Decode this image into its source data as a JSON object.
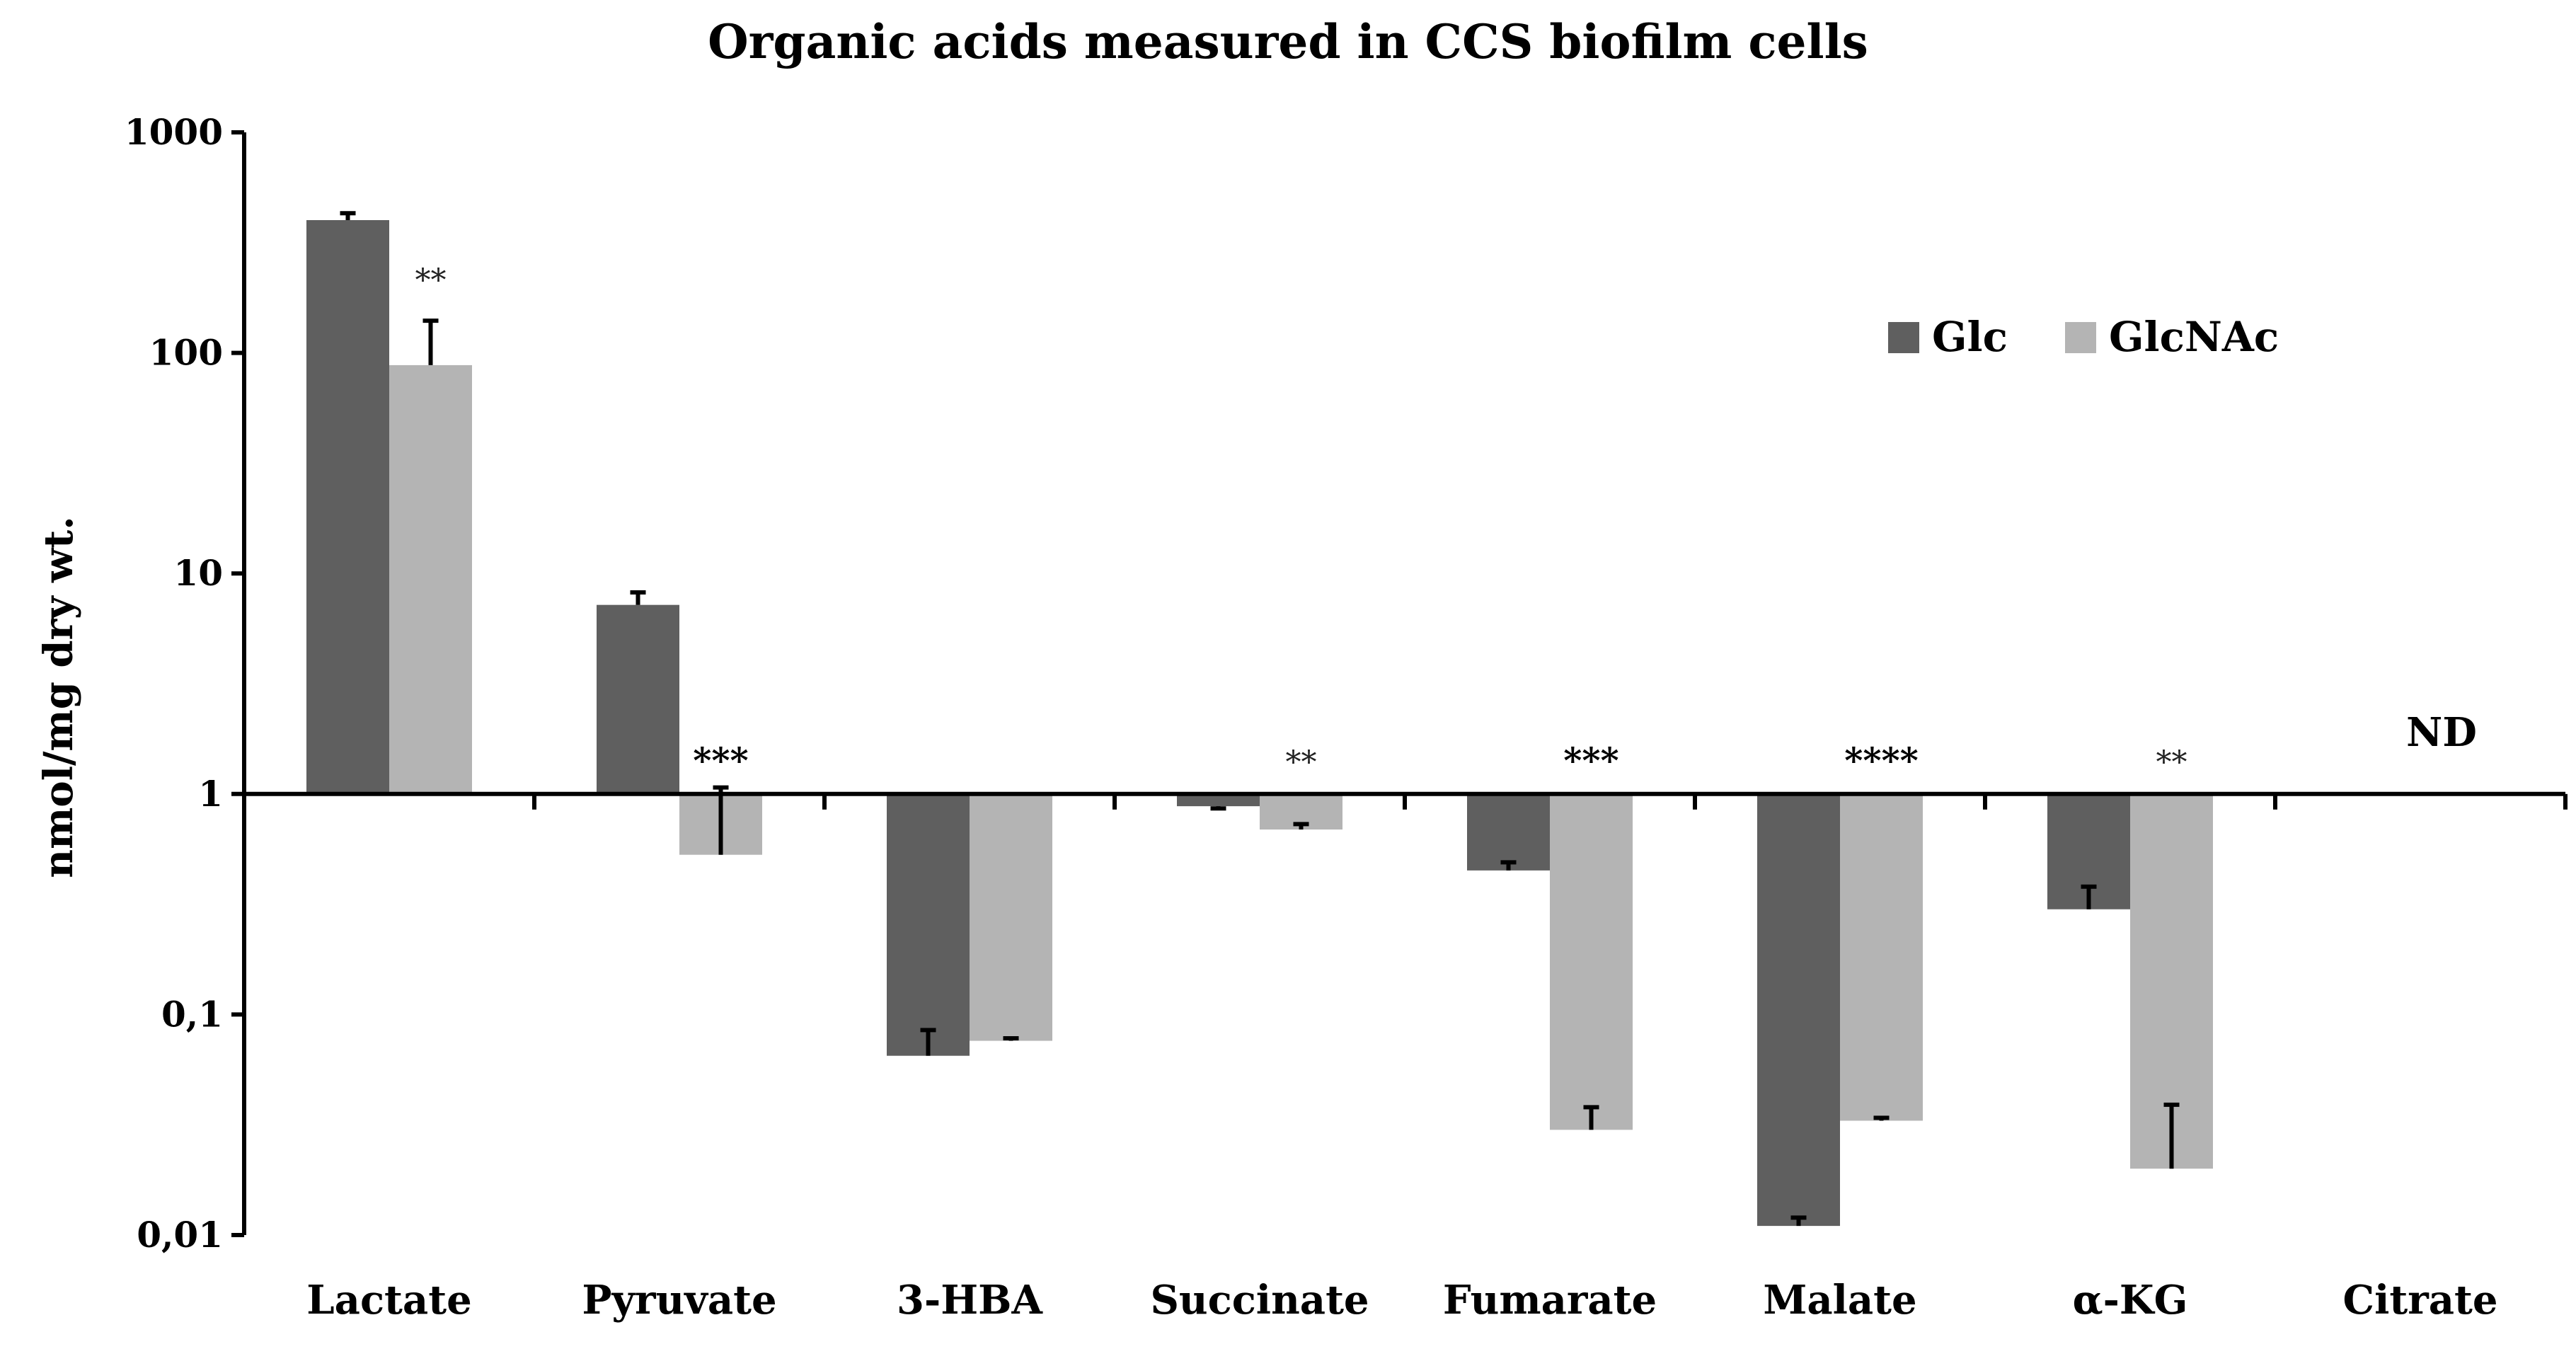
{
  "chart_data": {
    "type": "bar",
    "title": "Organic acids measured in CCS biofilm cells",
    "xlabel": "",
    "ylabel": "nmol/mg dry wt.",
    "yscale": "log",
    "ylim": [
      0.01,
      1000
    ],
    "baseline": 1,
    "y_ticks": [
      0.01,
      0.1,
      1,
      10,
      100,
      1000
    ],
    "y_tick_labels": [
      "0,01",
      "0,1",
      "1",
      "10",
      "100",
      "1000"
    ],
    "categories": [
      "Lactate",
      "Pyruvate",
      "3-HBA",
      "Succinate",
      "Fumarate",
      "Malate",
      "α-KG",
      "Citrate"
    ],
    "series": [
      {
        "name": "Glc",
        "color": "#5f5f5f",
        "values": [
          400,
          7.2,
          0.065,
          0.88,
          0.45,
          0.011,
          0.3,
          null
        ],
        "errors": [
          430,
          8.2,
          0.085,
          0.86,
          0.49,
          0.012,
          0.38,
          null
        ]
      },
      {
        "name": "GlcNAc",
        "color": "#b4b4b4",
        "values": [
          88,
          0.53,
          0.076,
          0.69,
          0.03,
          0.033,
          0.02,
          null
        ],
        "errors": [
          140,
          1.07,
          0.078,
          0.73,
          0.038,
          0.034,
          0.039,
          null
        ]
      }
    ],
    "annotations": [
      {
        "category": "Lactate",
        "text": "**"
      },
      {
        "category": "Pyruvate",
        "text": "***"
      },
      {
        "category": "Succinate",
        "text": "**"
      },
      {
        "category": "Fumarate",
        "text": "***"
      },
      {
        "category": "Malate",
        "text": "****"
      },
      {
        "category": "α-KG",
        "text": "**"
      },
      {
        "category": "Citrate",
        "text": "ND"
      }
    ],
    "legend": {
      "position": "top-right",
      "entries": [
        "Glc",
        "GlcNAc"
      ]
    }
  }
}
